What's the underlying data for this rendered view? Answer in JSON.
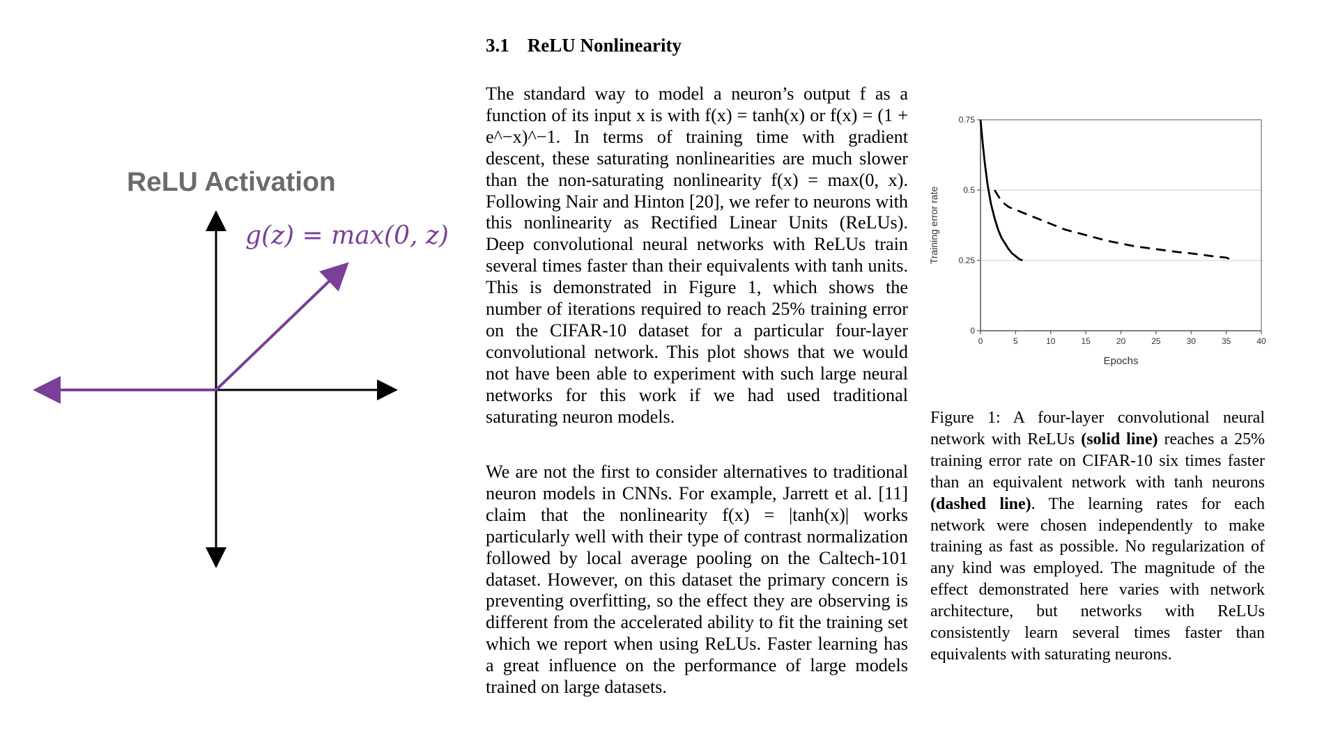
{
  "left_figure": {
    "title": "ReLU Activation",
    "formula": "g(z) = max(0, z)",
    "colors": {
      "title": "#6b6b6b",
      "line": "#7a3f98",
      "axes": "#000000"
    }
  },
  "section": {
    "number": "3.1",
    "title": "ReLU Nonlinearity"
  },
  "paragraphs": [
    "The standard way to model a neuron’s output f as a function of its input x is with f(x) = tanh(x) or f(x) = (1 + e^−x)^−1. In terms of training time with gradient descent, these saturating nonlinearities are much slower than the non-saturating nonlinearity f(x) = max(0, x). Following Nair and Hinton [20], we refer to neurons with this nonlinearity as Rectified Linear Units (ReLUs). Deep convolutional neural networks with ReLUs train several times faster than their equivalents with tanh units. This is demonstrated in Figure 1, which shows the number of iterations required to reach 25% training error on the CIFAR-10 dataset for a particular four-layer convolutional network. This plot shows that we would not have been able to experiment with such large neural networks for this work if we had used traditional saturating neuron models.",
    "We are not the first to consider alternatives to traditional neuron models in CNNs. For example, Jarrett et al. [11] claim that the nonlinearity f(x) = |tanh(x)| works particularly well with their type of contrast normalization followed by local average pooling on the Caltech-101 dataset. However, on this dataset the primary concern is preventing overfitting, so the effect they are observing is different from the accelerated ability to fit the training set which we report when using ReLUs. Faster learning has a great influence on the performance of large models trained on large datasets."
  ],
  "caption": {
    "label": "Figure 1:",
    "text_1": "A four-layer convolutional neural network with ReLUs",
    "bold_1": "(solid line)",
    "text_2": "reaches a 25% training error rate on CIFAR-10 six times faster than an equivalent network with tanh neurons",
    "bold_2": "(dashed line)",
    "text_3": ". The learning rates for each network were chosen independently to make training as fast as possible. No regularization of any kind was employed. The magnitude of the effect demonstrated here varies with network architecture, but networks with ReLUs consistently learn several times faster than equivalents with saturating neurons."
  },
  "chart_data": {
    "type": "line",
    "xlabel": "Epochs",
    "ylabel": "Training error rate",
    "xlim": [
      0,
      40
    ],
    "ylim": [
      0,
      0.75
    ],
    "xticks": [
      "0",
      "5",
      "10",
      "15",
      "20",
      "25",
      "30",
      "35",
      "40"
    ],
    "yticks": [
      "0",
      "0.25",
      "0.5",
      "0.75"
    ],
    "grid": "horizontal",
    "series": [
      {
        "style": "solid",
        "x": [
          0,
          0.3,
          0.6,
          1,
          1.5,
          2,
          2.5,
          3,
          3.5,
          4,
          4.5,
          5,
          5.5,
          6
        ],
        "y": [
          0.75,
          0.67,
          0.6,
          0.52,
          0.45,
          0.4,
          0.36,
          0.33,
          0.31,
          0.29,
          0.275,
          0.265,
          0.255,
          0.25
        ]
      },
      {
        "style": "dashed",
        "x": [
          2,
          3,
          4,
          5,
          6,
          8,
          10,
          12,
          15,
          18,
          20,
          22,
          25,
          28,
          30,
          33,
          35,
          36
        ],
        "y": [
          0.5,
          0.46,
          0.44,
          0.43,
          0.42,
          0.4,
          0.38,
          0.36,
          0.34,
          0.32,
          0.31,
          0.3,
          0.29,
          0.28,
          0.275,
          0.265,
          0.26,
          0.25
        ]
      }
    ],
    "colors": {
      "lines": "#000000",
      "grid": "#cccccc",
      "axes": "#555555"
    }
  }
}
